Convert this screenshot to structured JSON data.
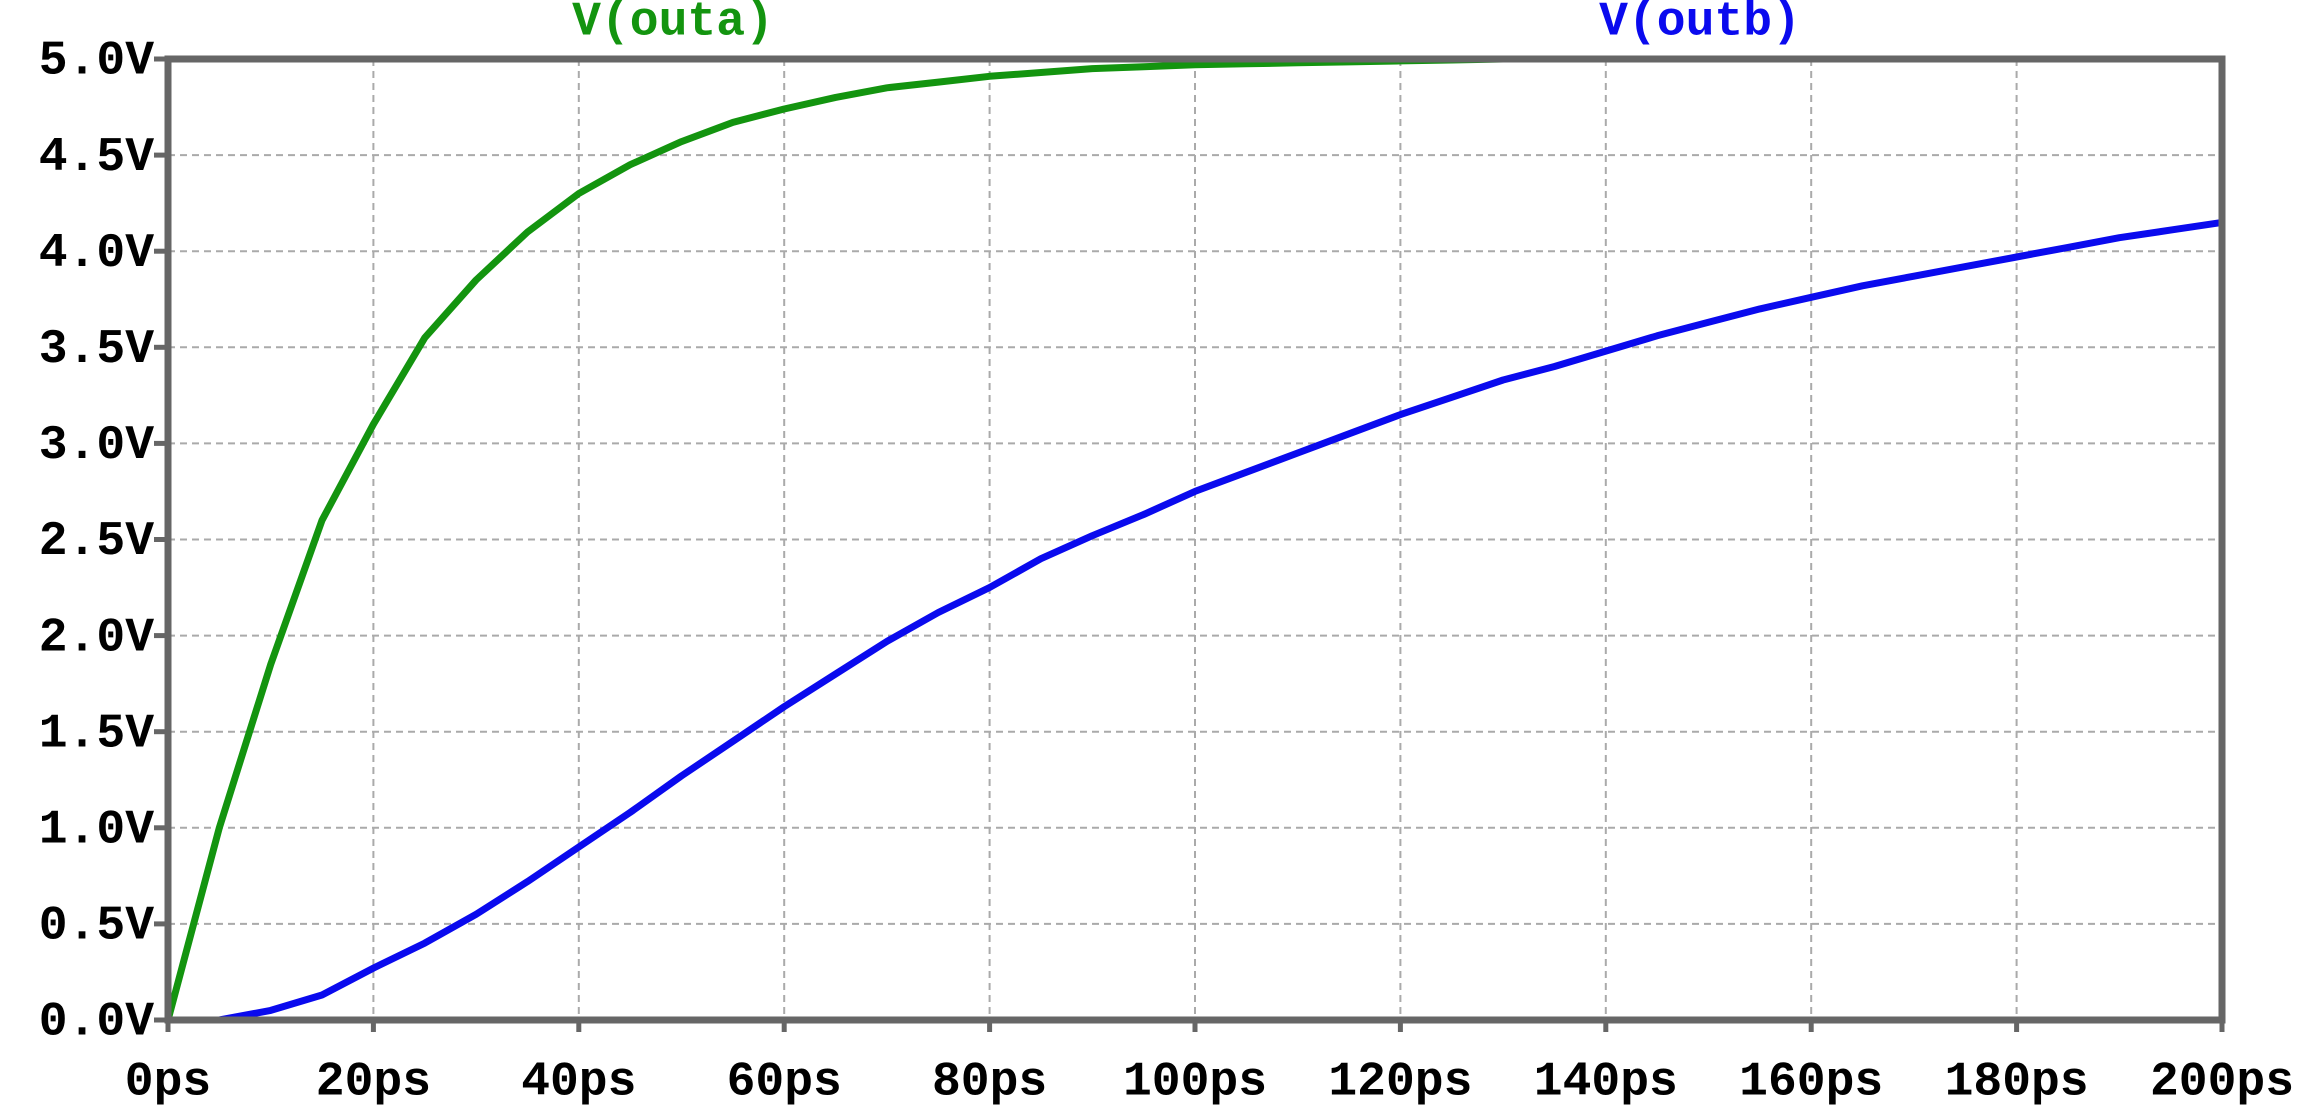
{
  "chart_data": {
    "type": "line",
    "x": [
      0,
      5,
      10,
      15,
      20,
      25,
      30,
      35,
      40,
      45,
      50,
      55,
      60,
      65,
      70,
      75,
      80,
      85,
      90,
      95,
      100,
      105,
      110,
      115,
      120,
      125,
      130,
      135,
      140,
      145,
      150,
      155,
      160,
      165,
      170,
      175,
      180,
      185,
      190,
      195,
      200
    ],
    "series": [
      {
        "name": "V(outa)",
        "color": "#13940f",
        "values": [
          0,
          1.0,
          1.85,
          2.6,
          3.1,
          3.55,
          3.85,
          4.1,
          4.3,
          4.45,
          4.57,
          4.67,
          4.74,
          4.8,
          4.85,
          4.88,
          4.91,
          4.93,
          4.95,
          4.96,
          4.97,
          4.975,
          4.98,
          4.985,
          4.99,
          4.995,
          5,
          5,
          5,
          5,
          5,
          5,
          5,
          5,
          5,
          5,
          5,
          5,
          5,
          5,
          5
        ]
      },
      {
        "name": "V(outb)",
        "color": "#0a0aee",
        "values": [
          0,
          0,
          0.05,
          0.13,
          0.27,
          0.4,
          0.55,
          0.72,
          0.9,
          1.08,
          1.27,
          1.45,
          1.63,
          1.8,
          1.97,
          2.12,
          2.25,
          2.4,
          2.52,
          2.63,
          2.75,
          2.85,
          2.95,
          3.05,
          3.15,
          3.24,
          3.33,
          3.4,
          3.48,
          3.56,
          3.63,
          3.7,
          3.76,
          3.82,
          3.87,
          3.92,
          3.97,
          4.02,
          4.07,
          4.11,
          4.15
        ]
      }
    ],
    "xlim": [
      0,
      200
    ],
    "ylim": [
      0,
      5
    ],
    "xticks": [
      {
        "value": 0,
        "label": "0ps"
      },
      {
        "value": 20,
        "label": "20ps"
      },
      {
        "value": 40,
        "label": "40ps"
      },
      {
        "value": 60,
        "label": "60ps"
      },
      {
        "value": 80,
        "label": "80ps"
      },
      {
        "value": 100,
        "label": "100ps"
      },
      {
        "value": 120,
        "label": "120ps"
      },
      {
        "value": 140,
        "label": "140ps"
      },
      {
        "value": 160,
        "label": "160ps"
      },
      {
        "value": 180,
        "label": "180ps"
      },
      {
        "value": 200,
        "label": "200ps"
      }
    ],
    "yticks": [
      {
        "value": 0,
        "label": "0.0V"
      },
      {
        "value": 0.5,
        "label": "0.5V"
      },
      {
        "value": 1,
        "label": "1.0V"
      },
      {
        "value": 1.5,
        "label": "1.5V"
      },
      {
        "value": 2,
        "label": "2.0V"
      },
      {
        "value": 2.5,
        "label": "2.5V"
      },
      {
        "value": 3,
        "label": "3.0V"
      },
      {
        "value": 3.5,
        "label": "3.5V"
      },
      {
        "value": 4,
        "label": "4.0V"
      },
      {
        "value": 4.5,
        "label": "4.5V"
      },
      {
        "value": 5,
        "label": "5.0V"
      }
    ],
    "grid": true
  }
}
